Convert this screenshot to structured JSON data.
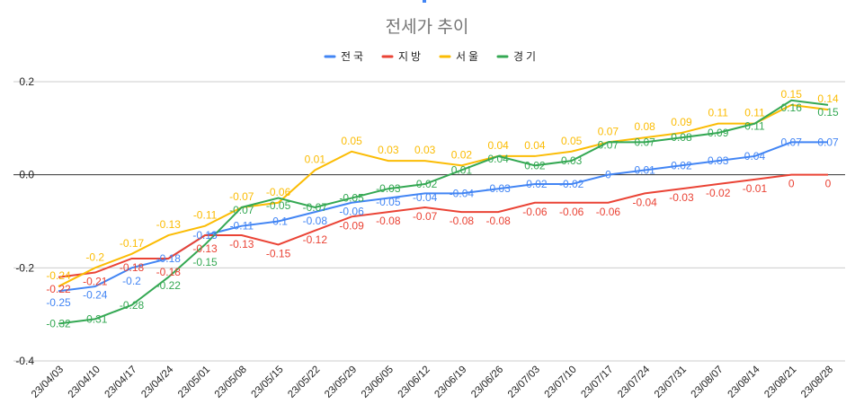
{
  "chart_data": {
    "type": "line",
    "title": "전세가 추이",
    "legend_position": "top",
    "grid": true,
    "ylim": [
      -0.4,
      0.2
    ],
    "yticks": [
      "0.2",
      "0.0",
      "-0.2",
      "-0.4"
    ],
    "ytick_values": [
      0.2,
      0.0,
      -0.2,
      -0.4
    ],
    "categories": [
      "23/04/03",
      "23/04/10",
      "23/04/17",
      "23/04/24",
      "23/05/01",
      "23/05/08",
      "23/05/15",
      "23/05/22",
      "23/05/29",
      "23/06/05",
      "23/06/12",
      "23/06/19",
      "23/06/26",
      "23/07/03",
      "23/07/10",
      "23/07/17",
      "23/07/24",
      "23/07/31",
      "23/08/07",
      "23/08/14",
      "23/08/21",
      "23/08/28"
    ],
    "series": [
      {
        "name": "전국",
        "color": "#4285f4",
        "values": [
          -0.25,
          -0.24,
          -0.2,
          -0.18,
          -0.13,
          -0.11,
          -0.1,
          -0.08,
          -0.06,
          -0.05,
          -0.04,
          -0.04,
          -0.03,
          -0.02,
          -0.02,
          0,
          0.01,
          0.02,
          0.03,
          0.04,
          0.07,
          0.07
        ]
      },
      {
        "name": "지방",
        "color": "#ea4335",
        "values": [
          -0.22,
          -0.21,
          -0.18,
          -0.18,
          -0.13,
          -0.13,
          -0.15,
          -0.12,
          -0.09,
          -0.08,
          -0.07,
          -0.08,
          -0.08,
          -0.06,
          -0.06,
          -0.06,
          -0.04,
          -0.03,
          -0.02,
          -0.01,
          0,
          0
        ]
      },
      {
        "name": "서울",
        "color": "#fbbc04",
        "values": [
          -0.24,
          -0.2,
          -0.17,
          -0.13,
          -0.11,
          -0.07,
          -0.06,
          0.01,
          0.05,
          0.03,
          0.03,
          0.02,
          0.04,
          0.04,
          0.05,
          0.07,
          0.08,
          0.09,
          0.11,
          0.11,
          0.15,
          0.14
        ]
      },
      {
        "name": "경기",
        "color": "#34a853",
        "values": [
          -0.32,
          -0.31,
          -0.28,
          -0.22,
          -0.15,
          -0.07,
          -0.05,
          -0.07,
          -0.05,
          -0.03,
          -0.02,
          0.01,
          0.04,
          0.02,
          0.03,
          0.07,
          0.07,
          0.08,
          0.09,
          0.11,
          0.16,
          0.15
        ]
      }
    ]
  }
}
